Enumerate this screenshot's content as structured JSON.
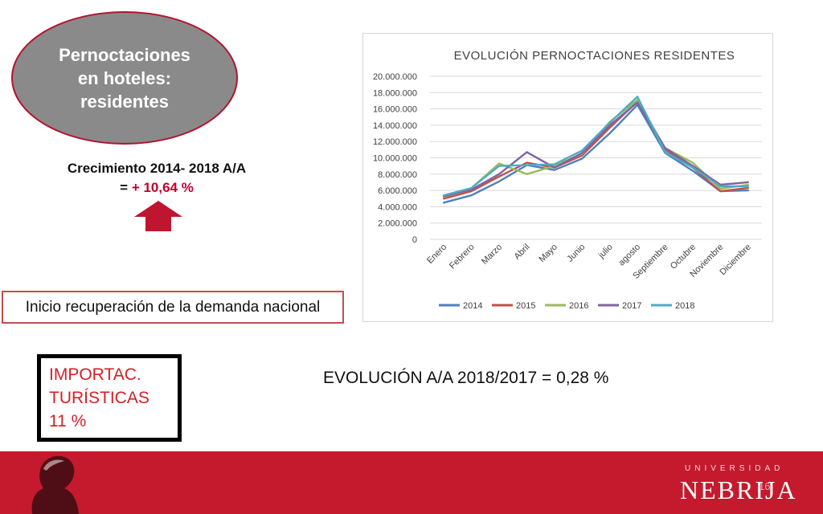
{
  "slide": {
    "ellipse_title": "Pernoctaciones en hoteles: residentes",
    "growth_label": "Crecimiento 2014- 2018 A/A",
    "growth_prefix": "= ",
    "growth_value": "+ 10,64 %",
    "recovery_text": "Inicio recuperación de la demanda nacional",
    "importac_line1": "IMPORTAC.",
    "importac_line2": "TURÍSTICAS",
    "importac_line3": "11 %",
    "evolution_text": "EVOLUCIÓN A/A 2018/2017 = 0,28 %",
    "page_number": "16"
  },
  "footer": {
    "university_label": "UNIVERSIDAD",
    "brand": "NEBRIJA"
  },
  "colors": {
    "footer_red": "#c5192d",
    "accent_red": "#c00030",
    "arrow_red": "#c0152f",
    "ellipse_gray": "#8a8a8a"
  },
  "chart_data": {
    "type": "line",
    "title": "EVOLUCIÓN PERNOCTACIONES RESIDENTES",
    "xlabel": "",
    "ylabel": "",
    "ylim": [
      0,
      20000000
    ],
    "yticks": [
      0,
      2000000,
      4000000,
      6000000,
      8000000,
      10000000,
      12000000,
      14000000,
      16000000,
      18000000,
      20000000
    ],
    "ytick_labels": [
      "0",
      "2.000.000",
      "4.000.000",
      "6.000.000",
      "8.000.000",
      "10.000.000",
      "12.000.000",
      "14.000.000",
      "16.000.000",
      "18.000.000",
      "20.000.000"
    ],
    "categories": [
      "Enero",
      "Febrero",
      "Marzo",
      "Abril",
      "Mayo",
      "Junio",
      "julio",
      "agosto",
      "Septiembre",
      "Octubre",
      "Noviembre",
      "Diciembre"
    ],
    "grid": true,
    "legend_position": "bottom",
    "series": [
      {
        "name": "2014",
        "color": "#4f81bd",
        "values": [
          4500000,
          5400000,
          7100000,
          9100000,
          8500000,
          9900000,
          13000000,
          16500000,
          10600000,
          8400000,
          5900000,
          6000000
        ]
      },
      {
        "name": "2015",
        "color": "#c0504d",
        "values": [
          5000000,
          5900000,
          7700000,
          9400000,
          8800000,
          10300000,
          13700000,
          16900000,
          11000000,
          8800000,
          5900000,
          6300000
        ]
      },
      {
        "name": "2016",
        "color": "#9bbb59",
        "values": [
          5200000,
          6300000,
          9300000,
          8000000,
          9000000,
          10500000,
          14400000,
          17100000,
          11200000,
          9400000,
          6200000,
          6700000
        ]
      },
      {
        "name": "2017",
        "color": "#8064a2",
        "values": [
          5300000,
          6100000,
          8000000,
          10700000,
          8800000,
          10600000,
          14000000,
          16800000,
          11200000,
          9000000,
          6700000,
          7000000
        ]
      },
      {
        "name": "2018",
        "color": "#4bacc6",
        "values": [
          5400000,
          6300000,
          9000000,
          9100000,
          9200000,
          10900000,
          14300000,
          17500000,
          10700000,
          8800000,
          6500000,
          6500000
        ]
      }
    ]
  }
}
